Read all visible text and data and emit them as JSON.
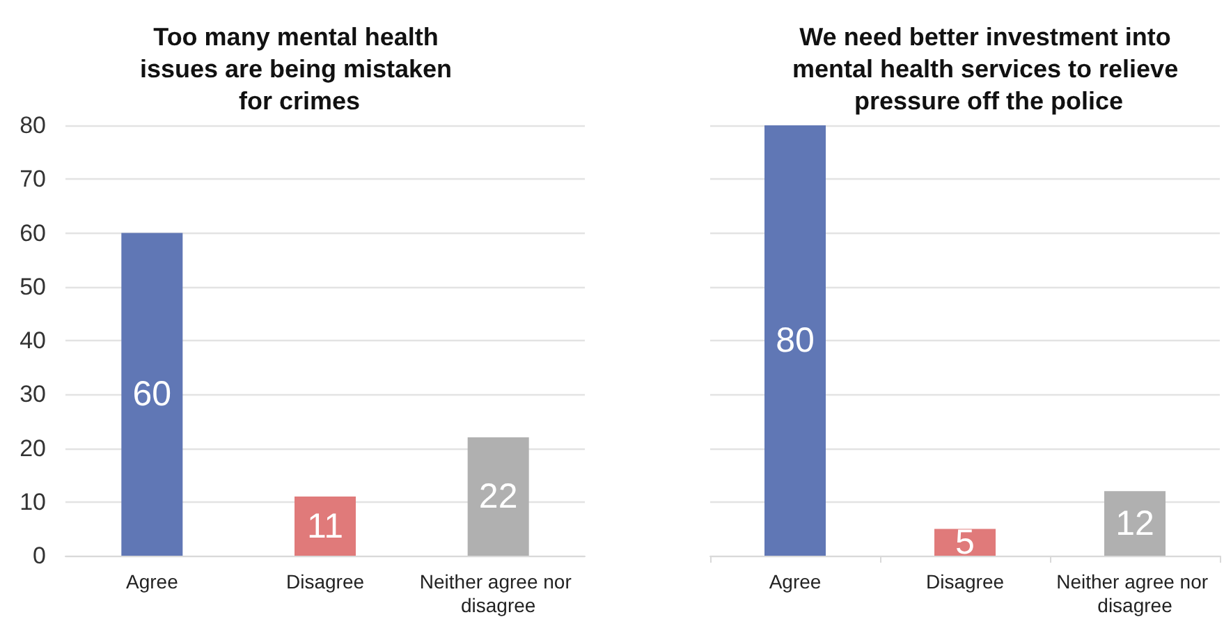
{
  "chart_data": [
    {
      "type": "bar",
      "title": "Too many mental health issues are being mistaken for crimes",
      "categories": [
        "Agree",
        "Disagree",
        "Neither agree nor disagree"
      ],
      "values": [
        60,
        11,
        22
      ],
      "colors": [
        "#6077b5",
        "#e07a7a",
        "#b0b0b0"
      ],
      "ylim": [
        0,
        80
      ],
      "yticks": [
        0,
        10,
        20,
        30,
        40,
        50,
        60,
        70,
        80
      ],
      "grid": "y",
      "data_labels": true
    },
    {
      "type": "bar",
      "title": "We need better investment into mental health services to relieve pressure off the police",
      "categories": [
        "Agree",
        "Disagree",
        "Neither agree nor disagree"
      ],
      "values": [
        80,
        5,
        12
      ],
      "colors": [
        "#6077b5",
        "#e07a7a",
        "#b0b0b0"
      ],
      "ylim": [
        0,
        80
      ],
      "yticks": [
        0,
        10,
        20,
        30,
        40,
        50,
        60,
        70,
        80
      ],
      "grid": "y",
      "data_labels": true,
      "tick_labels": "x"
    }
  ]
}
